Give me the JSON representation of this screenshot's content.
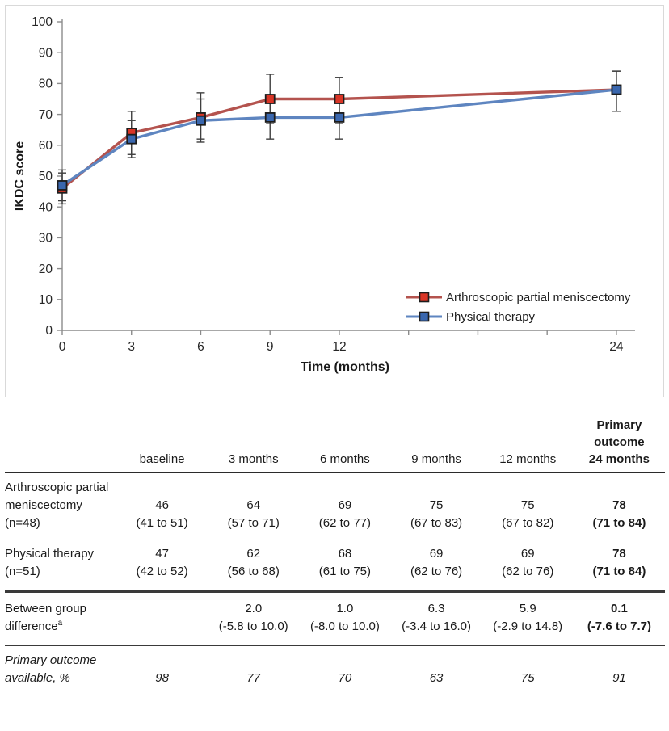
{
  "chart_data": {
    "type": "line",
    "title": "",
    "xlabel": "Time (months)",
    "ylabel": "IKDC score",
    "x": [
      0,
      3,
      6,
      9,
      12,
      24
    ],
    "xlim": [
      0,
      24
    ],
    "ylim": [
      0,
      100
    ],
    "ytick_step": 10,
    "xticks_all": [
      0,
      3,
      6,
      9,
      12,
      15,
      18,
      21,
      24
    ],
    "xticks_labeled": [
      0,
      3,
      6,
      9,
      12,
      24
    ],
    "grid": false,
    "legend_position": "inside-bottom-right",
    "axis_color": "#8c8c8c",
    "errorbar_color": "#3f3f3f",
    "series": [
      {
        "name": "Arthroscopic partial meniscectomy",
        "marker": "square",
        "line_color": "#b4534e",
        "marker_color": "#d93526",
        "marker_border": "#1c1c1c",
        "values": [
          46,
          64,
          69,
          75,
          75,
          78
        ],
        "ci_low": [
          41,
          57,
          62,
          67,
          67,
          71
        ],
        "ci_high": [
          51,
          71,
          77,
          83,
          82,
          84
        ]
      },
      {
        "name": "Physical therapy",
        "marker": "square",
        "line_color": "#5e85c0",
        "marker_color": "#3a67ae",
        "marker_border": "#1c1c1c",
        "values": [
          47,
          62,
          68,
          69,
          69,
          78
        ],
        "ci_low": [
          42,
          56,
          61,
          62,
          62,
          71
        ],
        "ci_high": [
          52,
          68,
          75,
          76,
          76,
          84
        ]
      }
    ]
  },
  "table": {
    "header": [
      "",
      "baseline",
      "3 months",
      "6 months",
      "9 months",
      "12 months",
      "Primary\noutcome\n24 months"
    ],
    "rows": [
      {
        "label": "Arthroscopic partial meniscectomy (n=48)",
        "cells": [
          {
            "v": "46",
            "ci": "(41 to 51)"
          },
          {
            "v": "64",
            "ci": "(57 to 71)"
          },
          {
            "v": "69",
            "ci": "(62 to 77)"
          },
          {
            "v": "75",
            "ci": "(67 to 83)"
          },
          {
            "v": "75",
            "ci": "(67 to 82)"
          },
          {
            "v": "78",
            "ci": "(71 to 84)"
          }
        ]
      },
      {
        "label": "Physical therapy (n=51)",
        "cells": [
          {
            "v": "47",
            "ci": "(42 to 52)"
          },
          {
            "v": "62",
            "ci": "(56 to 68)"
          },
          {
            "v": "68",
            "ci": "(61 to 75)"
          },
          {
            "v": "69",
            "ci": "(62 to 76)"
          },
          {
            "v": "69",
            "ci": "(62 to 76)"
          },
          {
            "v": "78",
            "ci": "(71 to 84)"
          }
        ]
      },
      {
        "label": "Between group difference",
        "label_sup": "a",
        "cells": [
          {
            "v": "",
            "ci": ""
          },
          {
            "v": "2.0",
            "ci": "(-5.8 to 10.0)"
          },
          {
            "v": "1.0",
            "ci": "(-8.0 to 10.0)"
          },
          {
            "v": "6.3",
            "ci": "(-3.4 to 16.0)"
          },
          {
            "v": "5.9",
            "ci": "(-2.9 to 14.8)"
          },
          {
            "v": "0.1",
            "ci": "(-7.6 to 7.7)"
          }
        ]
      },
      {
        "label": "Primary outcome available, %",
        "label_sup": "",
        "cells": [
          {
            "v": "98",
            "ci": ""
          },
          {
            "v": "77",
            "ci": ""
          },
          {
            "v": "70",
            "ci": ""
          },
          {
            "v": "63",
            "ci": ""
          },
          {
            "v": "75",
            "ci": ""
          },
          {
            "v": "91",
            "ci": ""
          }
        ]
      }
    ]
  }
}
